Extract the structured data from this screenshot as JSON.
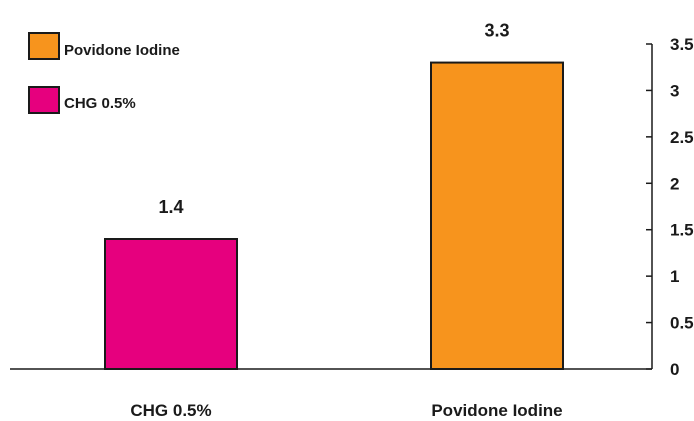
{
  "chart_data": {
    "type": "bar",
    "categories": [
      "CHG 0.5%",
      "Povidone Iodine"
    ],
    "values": [
      1.4,
      3.3
    ],
    "data_labels": [
      "1.4",
      "3.3"
    ],
    "colors": [
      "#e6007e",
      "#f7941d"
    ],
    "ylim": [
      0,
      3.5
    ],
    "yticks": [
      0,
      0.5,
      1,
      1.5,
      2,
      2.5,
      3,
      3.5
    ],
    "ytick_labels": [
      "0",
      "0.5",
      "1",
      "1.5",
      "2",
      "2.5",
      "3",
      "3.5"
    ],
    "y_axis_side": "right",
    "grid": false,
    "legend": {
      "position": "top-left",
      "entries": [
        {
          "label": "Povidone Iodine",
          "color": "#f7941d"
        },
        {
          "label": "CHG 0.5%",
          "color": "#e6007e"
        }
      ]
    }
  }
}
